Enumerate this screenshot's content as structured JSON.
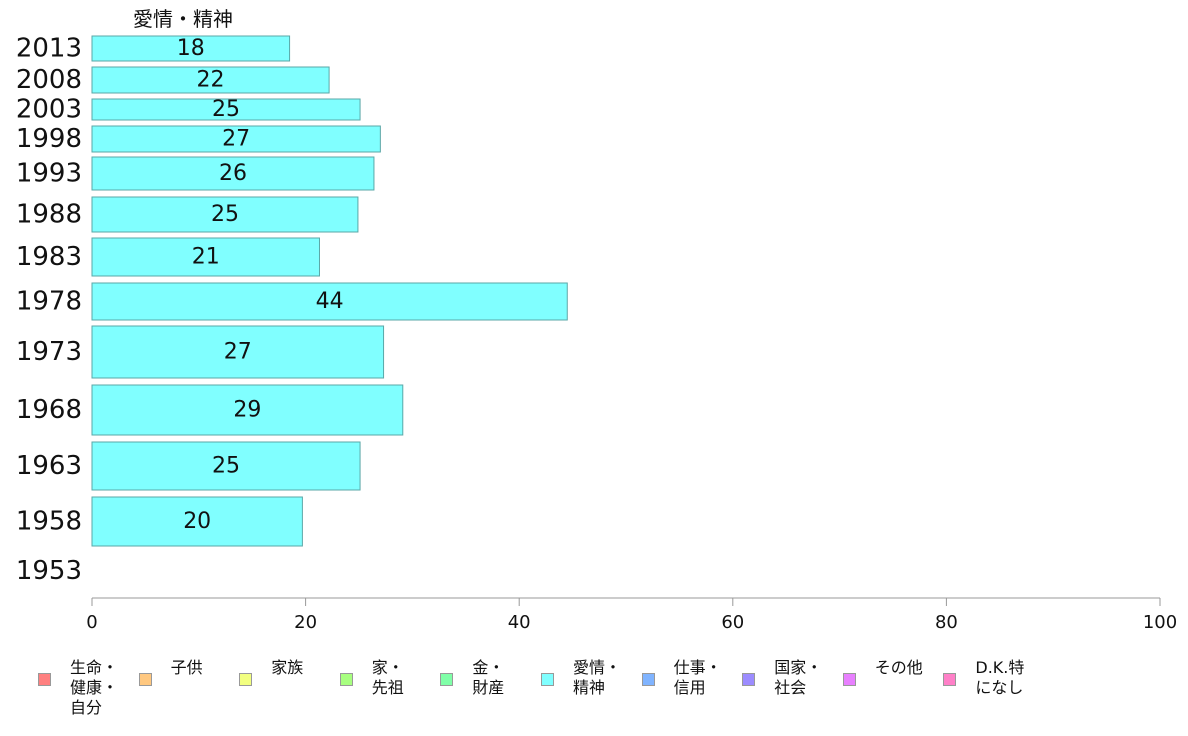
{
  "chart_data": {
    "type": "bar",
    "orientation": "horizontal",
    "series_label": "愛情・精神",
    "categories": [
      "2013",
      "2008",
      "2003",
      "1998",
      "1993",
      "1988",
      "1983",
      "1978",
      "1973",
      "1968",
      "1963",
      "1958",
      "1953"
    ],
    "values": [
      18.5,
      22.2,
      25.1,
      27,
      26.4,
      24.9,
      21.3,
      44.5,
      27.3,
      29.1,
      25.1,
      19.7,
      null
    ],
    "data_labels": [
      "18",
      "22",
      "25",
      "27",
      "26",
      "25",
      "21",
      "44",
      "27",
      "29",
      "25",
      "20",
      ""
    ],
    "xlim": [
      0,
      100
    ],
    "xticks": [
      "0",
      "20",
      "40",
      "60",
      "80",
      "100"
    ],
    "bar_color": "#80ffff",
    "grid": false,
    "legend_position": "bottom",
    "legend": [
      {
        "label": "生命・\n健康・\n自分",
        "color": "#ff8080"
      },
      {
        "label": "子供",
        "color": "#ffc880"
      },
      {
        "label": "家族",
        "color": "#f2ff80"
      },
      {
        "label": "家・\n先祖",
        "color": "#a8ff80"
      },
      {
        "label": "金・\n財産",
        "color": "#80ffa8"
      },
      {
        "label": "愛情・\n精神",
        "color": "#80ffff"
      },
      {
        "label": "仕事・\n信用",
        "color": "#80b4ff"
      },
      {
        "label": "国家・\n社会",
        "color": "#9c8cff"
      },
      {
        "label": "その他",
        "color": "#e880ff"
      },
      {
        "label": "D.K.特\nになし",
        "color": "#ff80c8"
      }
    ]
  }
}
